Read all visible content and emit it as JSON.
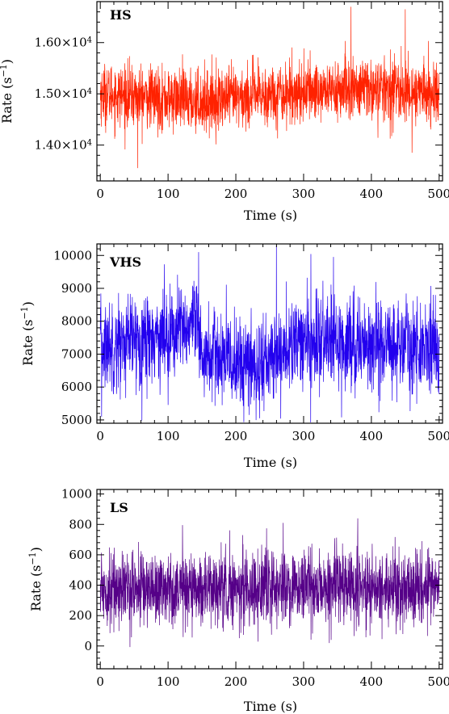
{
  "chart_data": [
    {
      "type": "line",
      "panel_label": "HS",
      "xlabel": "Time (s)",
      "ylabel_main": "Rate (s",
      "ylabel_sup": "−1",
      "ylabel_end": ")",
      "xlim": [
        -5,
        505
      ],
      "ylim": [
        13300,
        16800
      ],
      "xticks": [
        0,
        100,
        200,
        300,
        400,
        500
      ],
      "xtick_labels": [
        "0",
        "100",
        "200",
        "300",
        "400",
        "500"
      ],
      "yticks": [
        14000,
        15000,
        16000
      ],
      "ytick_labels": [
        {
          "main": "1.40×10",
          "sup": "4"
        },
        {
          "main": "1.50×10",
          "sup": "4"
        },
        {
          "main": "1.60×10",
          "sup": "4"
        }
      ],
      "color": "#ff2200",
      "series": {
        "x_start": 0,
        "x_end": 500,
        "n": 2000,
        "mean": 15000,
        "noise": 300,
        "trend": [
          [
            0,
            15000
          ],
          [
            150,
            14850
          ],
          [
            300,
            15050
          ],
          [
            400,
            15100
          ],
          [
            500,
            15000
          ]
        ],
        "spikes": [
          [
            55,
            13550
          ],
          [
            370,
            16700
          ],
          [
            450,
            16650
          ],
          [
            460,
            13850
          ]
        ]
      },
      "grid": false
    },
    {
      "type": "line",
      "panel_label": "VHS",
      "xlabel": "Time (s)",
      "ylabel_main": "Rate (s",
      "ylabel_sup": "−1",
      "ylabel_end": ")",
      "xlim": [
        -5,
        505
      ],
      "ylim": [
        4900,
        10350
      ],
      "xticks": [
        0,
        100,
        200,
        300,
        400,
        500
      ],
      "xtick_labels": [
        "0",
        "100",
        "200",
        "300",
        "400",
        "500"
      ],
      "yticks": [
        5000,
        6000,
        7000,
        8000,
        9000,
        10000
      ],
      "ytick_labels": [
        {
          "main": "5000",
          "sup": ""
        },
        {
          "main": "6000",
          "sup": ""
        },
        {
          "main": "7000",
          "sup": ""
        },
        {
          "main": "8000",
          "sup": ""
        },
        {
          "main": "9000",
          "sup": ""
        },
        {
          "main": "10000",
          "sup": ""
        }
      ],
      "color": "#2200ee",
      "series": {
        "x_start": 0,
        "x_end": 500,
        "n": 1800,
        "mean": 7200,
        "noise": 700,
        "trend": [
          [
            0,
            7200
          ],
          [
            140,
            7800
          ],
          [
            150,
            7000
          ],
          [
            230,
            6600
          ],
          [
            300,
            7400
          ],
          [
            500,
            7200
          ]
        ],
        "spikes": [
          [
            145,
            10100
          ],
          [
            260,
            10300
          ],
          [
            235,
            5050
          ],
          [
            2,
            5100
          ]
        ]
      },
      "grid": false
    },
    {
      "type": "line",
      "panel_label": "LS",
      "xlabel": "Time (s)",
      "ylabel_main": "Rate (s",
      "ylabel_sup": "−1",
      "ylabel_end": ")",
      "xlim": [
        -5,
        505
      ],
      "ylim": [
        -150,
        1030
      ],
      "xticks": [
        0,
        100,
        200,
        300,
        400,
        500
      ],
      "xtick_labels": [
        "0",
        "100",
        "200",
        "300",
        "400",
        "500"
      ],
      "yticks": [
        0,
        200,
        400,
        600,
        800,
        1000
      ],
      "ytick_labels": [
        {
          "main": "0",
          "sup": ""
        },
        {
          "main": "200",
          "sup": ""
        },
        {
          "main": "400",
          "sup": ""
        },
        {
          "main": "600",
          "sup": ""
        },
        {
          "main": "800",
          "sup": ""
        },
        {
          "main": "1000",
          "sup": ""
        }
      ],
      "color": "#550088",
      "series": {
        "x_start": 0,
        "x_end": 500,
        "n": 2000,
        "mean": 380,
        "noise": 120,
        "trend": [
          [
            0,
            380
          ],
          [
            500,
            380
          ]
        ],
        "spikes": [
          [
            380,
            840
          ],
          [
            270,
            810
          ],
          [
            20,
            90
          ]
        ]
      },
      "grid": false
    }
  ]
}
